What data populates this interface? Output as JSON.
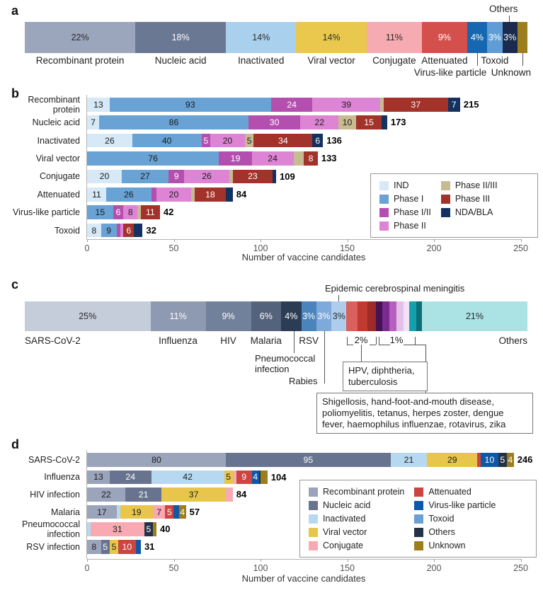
{
  "chart_data": [
    {
      "id": "a",
      "type": "bar",
      "stacked": true,
      "orientation": "horizontal",
      "letter": "a",
      "others_label": "Others",
      "unit": "percent of vaccine candidates by platform",
      "segments": [
        {
          "label": "Recombinant protein",
          "pct": "22%",
          "value": 22,
          "color": "#9ba5bc",
          "tc": "dark",
          "lp": "b1"
        },
        {
          "label": "Nucleic acid",
          "pct": "18%",
          "value": 18,
          "color": "#6b7894",
          "tc": "light",
          "lp": "b1"
        },
        {
          "label": "Inactivated",
          "pct": "14%",
          "value": 14,
          "color": "#a9d1ed",
          "tc": "dark",
          "lp": "b1"
        },
        {
          "label": "Viral vector",
          "pct": "14%",
          "value": 14,
          "color": "#e9c84d",
          "tc": "dark",
          "lp": "b1"
        },
        {
          "label": "Conjugate",
          "pct": "11%",
          "value": 11,
          "color": "#f6aab1",
          "tc": "dark",
          "lp": "b1"
        },
        {
          "label": "Attenuated",
          "pct": "9%",
          "value": 9,
          "color": "#d4504c",
          "tc": "light",
          "lp": "b1"
        },
        {
          "label": "Virus-like particle",
          "pct": "4%",
          "value": 4,
          "color": "#1767b0",
          "tc": "light",
          "lp": "b2"
        },
        {
          "label": "Toxoid",
          "pct": "3%",
          "value": 3,
          "color": "#609cd6",
          "tc": "light",
          "lp": "b1"
        },
        {
          "label": "Others",
          "pct": "3%",
          "value": 3,
          "color": "#1b2b4d",
          "tc": "light",
          "lp": "top"
        },
        {
          "label": "Unknown",
          "pct": "",
          "value": 2,
          "color": "#9d7e1e",
          "tc": "light",
          "lp": "b2"
        }
      ]
    },
    {
      "id": "b",
      "type": "bar",
      "stacked": true,
      "orientation": "horizontal",
      "letter": "b",
      "xlabel": "Number of vaccine candidates",
      "ticks": [
        0,
        50,
        100,
        150,
        200,
        250
      ],
      "xmax": 250,
      "legend_position": "right",
      "legend_cols": [
        [
          {
            "label": "IND",
            "color": "#d7e9f7",
            "text": "dark"
          },
          {
            "label": "Phase I",
            "color": "#69a2d5",
            "text": "dark"
          },
          {
            "label": "Phase I/II",
            "color": "#b44fb0",
            "text": "light"
          },
          {
            "label": "Phase II",
            "color": "#de84d5",
            "text": "dark"
          }
        ],
        [
          {
            "label": "Phase II/III",
            "color": "#c8bb92",
            "text": "dark"
          },
          {
            "label": "Phase III",
            "color": "#a3322a",
            "text": "light"
          },
          {
            "label": "NDA/BLA",
            "color": "#14325f",
            "text": "light"
          }
        ]
      ],
      "rows": [
        {
          "label": "Recombinant\nprotein",
          "total": 215,
          "segments": [
            {
              "v": 13,
              "k": "IND"
            },
            {
              "v": 93,
              "k": "Phase I"
            },
            {
              "v": 24,
              "k": "Phase I/II"
            },
            {
              "v": 39,
              "k": "Phase II"
            },
            {
              "v": 2,
              "k": "Phase II/III",
              "n": false
            },
            {
              "v": 37,
              "k": "Phase III"
            },
            {
              "v": 7,
              "k": "NDA/BLA"
            }
          ]
        },
        {
          "label": "Nucleic acid",
          "total": 173,
          "segments": [
            {
              "v": 7,
              "k": "IND"
            },
            {
              "v": 86,
              "k": "Phase I"
            },
            {
              "v": 30,
              "k": "Phase I/II"
            },
            {
              "v": 22,
              "k": "Phase II"
            },
            {
              "v": 10,
              "k": "Phase II/III"
            },
            {
              "v": 15,
              "k": "Phase III"
            },
            {
              "v": 3,
              "k": "NDA/BLA",
              "n": false
            }
          ]
        },
        {
          "label": "Inactivated",
          "total": 136,
          "segments": [
            {
              "v": 26,
              "k": "IND"
            },
            {
              "v": 40,
              "k": "Phase I"
            },
            {
              "v": 5,
              "k": "Phase I/II"
            },
            {
              "v": 20,
              "k": "Phase II"
            },
            {
              "v": 5,
              "k": "Phase II/III"
            },
            {
              "v": 34,
              "k": "Phase III"
            },
            {
              "v": 6,
              "k": "NDA/BLA"
            }
          ]
        },
        {
          "label": "Viral vector",
          "total": 133,
          "segments": [
            {
              "v": 76,
              "k": "Phase I"
            },
            {
              "v": 19,
              "k": "Phase I/II"
            },
            {
              "v": 24,
              "k": "Phase II"
            },
            {
              "v": 6,
              "k": "Phase II/III",
              "n": false
            },
            {
              "v": 8,
              "k": "Phase III"
            }
          ]
        },
        {
          "label": "Conjugate",
          "total": 109,
          "segments": [
            {
              "v": 20,
              "k": "IND"
            },
            {
              "v": 27,
              "k": "Phase I"
            },
            {
              "v": 9,
              "k": "Phase I/II"
            },
            {
              "v": 26,
              "k": "Phase II"
            },
            {
              "v": 2,
              "k": "Phase II/III",
              "n": false
            },
            {
              "v": 23,
              "k": "Phase III"
            },
            {
              "v": 2,
              "k": "NDA/BLA",
              "n": false
            }
          ]
        },
        {
          "label": "Attenuated",
          "total": 84,
          "segments": [
            {
              "v": 11,
              "k": "IND"
            },
            {
              "v": 26,
              "k": "Phase I"
            },
            {
              "v": 3,
              "k": "Phase I/II",
              "n": false
            },
            {
              "v": 20,
              "k": "Phase II"
            },
            {
              "v": 2,
              "k": "Phase II/III",
              "n": false
            },
            {
              "v": 18,
              "k": "Phase III"
            },
            {
              "v": 4,
              "k": "NDA/BLA",
              "n": false
            }
          ]
        },
        {
          "label": "Virus-like particle",
          "total": 42,
          "segments": [
            {
              "v": 15,
              "k": "Phase I"
            },
            {
              "v": 6,
              "k": "Phase I/II"
            },
            {
              "v": 8,
              "k": "Phase II"
            },
            {
              "v": 2,
              "k": "Phase II/III",
              "n": false
            },
            {
              "v": 11,
              "k": "Phase III"
            }
          ]
        },
        {
          "label": "Toxoid",
          "total": 32,
          "segments": [
            {
              "v": 8,
              "k": "IND"
            },
            {
              "v": 9,
              "k": "Phase I"
            },
            {
              "v": 2,
              "k": "Phase I/II",
              "n": false
            },
            {
              "v": 2,
              "k": "Phase II",
              "n": false
            },
            {
              "v": 6,
              "k": "Phase III"
            },
            {
              "v": 5,
              "k": "NDA/BLA",
              "n": false
            }
          ]
        }
      ]
    },
    {
      "id": "c",
      "type": "bar",
      "stacked": true,
      "orientation": "horizontal",
      "letter": "c",
      "unit": "percent of vaccine candidates by disease",
      "callouts": {
        "epidemic": "Epidemic cerebrospinal meningitis",
        "pneumococcal": "Pneumococcal\ninfection",
        "rabies": "Rabies",
        "pct2": "2%",
        "pct1": "1%",
        "box1": "HPV, diphtheria, tuberculosis",
        "box2": "Shigellosis, hand-foot-and-mouth disease, poliomyelitis, tetanus, herpes zoster, dengue fever, haemophilus influenzae, rotavirus, zika"
      },
      "segments": [
        {
          "label": "SARS-CoV-2",
          "pct": "25%",
          "value": 25,
          "color": "#c5cdda",
          "tc": "dark",
          "lp": "left"
        },
        {
          "label": "Influenza",
          "pct": "11%",
          "value": 11,
          "color": "#8e9ab1",
          "tc": "light",
          "lp": "c"
        },
        {
          "label": "HIV",
          "pct": "9%",
          "value": 9,
          "color": "#71809b",
          "tc": "light",
          "lp": "c"
        },
        {
          "label": "Malaria",
          "pct": "6%",
          "value": 6,
          "color": "#54627b",
          "tc": "light",
          "lp": "c"
        },
        {
          "label": "Pneumococcal infection",
          "pct": "4%",
          "value": 4,
          "color": "#2d3c55",
          "tc": "light",
          "lp": ""
        },
        {
          "label": "RSV",
          "pct": "3%",
          "value": 3,
          "color": "#4a84bd",
          "tc": "light",
          "lp": "c"
        },
        {
          "label": "Rabies",
          "pct": "3%",
          "value": 3,
          "color": "#7fa9da",
          "tc": "light",
          "lp": ""
        },
        {
          "label": "Epidemic cerebrospinal meningitis",
          "pct": "3%",
          "value": 3,
          "color": "#aecdec",
          "tc": "dark",
          "lp": ""
        },
        {
          "label": "",
          "pct": "",
          "value": 2.2,
          "color": "#d9615c",
          "tc": "light",
          "lp": ""
        },
        {
          "label": "",
          "pct": "",
          "value": 2.0,
          "color": "#c03a31",
          "tc": "light",
          "lp": ""
        },
        {
          "label": "",
          "pct": "",
          "value": 1.6,
          "color": "#9e2b28",
          "tc": "light",
          "lp": ""
        },
        {
          "label": "",
          "pct": "",
          "value": 1.3,
          "color": "#451253",
          "tc": "light",
          "lp": ""
        },
        {
          "label": "",
          "pct": "",
          "value": 1.5,
          "color": "#7b2b8d",
          "tc": "light",
          "lp": ""
        },
        {
          "label": "",
          "pct": "",
          "value": 1.4,
          "color": "#b75ec0",
          "tc": "light",
          "lp": ""
        },
        {
          "label": "",
          "pct": "",
          "value": 1.4,
          "color": "#e3c0ea",
          "tc": "dark",
          "lp": ""
        },
        {
          "label": "",
          "pct": "",
          "value": 1.1,
          "color": "#f2e2f6",
          "tc": "dark",
          "lp": ""
        },
        {
          "label": "",
          "pct": "",
          "value": 1.4,
          "color": "#12a0ac",
          "tc": "light",
          "lp": ""
        },
        {
          "label": "",
          "pct": "",
          "value": 1.1,
          "color": "#0b6f7a",
          "tc": "light",
          "lp": ""
        },
        {
          "label": "Others",
          "pct": "21%",
          "value": 21,
          "color": "#abe2e4",
          "tc": "dark",
          "lp": "right"
        }
      ]
    },
    {
      "id": "d",
      "type": "bar",
      "stacked": true,
      "orientation": "horizontal",
      "letter": "d",
      "xlabel": "Number of vaccine candidates",
      "ticks": [
        0,
        50,
        100,
        150,
        200,
        250
      ],
      "xmax": 250,
      "legend_position": "right",
      "legend_cols": [
        [
          {
            "label": "Recombinant protein",
            "color": "#9aa4bb",
            "text": "dark"
          },
          {
            "label": "Nucleic acid",
            "color": "#68748f",
            "text": "light"
          },
          {
            "label": "Inactivated",
            "color": "#b7d8f1",
            "text": "dark"
          },
          {
            "label": "Viral vector",
            "color": "#e8c64b",
            "text": "dark"
          },
          {
            "label": "Conjugate",
            "color": "#f8a9b2",
            "text": "dark"
          }
        ],
        [
          {
            "label": "Attenuated",
            "color": "#cc4540",
            "text": "light"
          },
          {
            "label": "Virus-like particle",
            "color": "#0e59a6",
            "text": "light"
          },
          {
            "label": "Toxoid",
            "color": "#6ba0d5",
            "text": "dark"
          },
          {
            "label": "Others",
            "color": "#233247",
            "text": "light"
          },
          {
            "label": "Unknown",
            "color": "#9d7d1d",
            "text": "light"
          }
        ]
      ],
      "rows": [
        {
          "label": "SARS-CoV-2",
          "total": 246,
          "segments": [
            {
              "v": 80,
              "k": "Recombinant protein"
            },
            {
              "v": 95,
              "k": "Nucleic acid"
            },
            {
              "v": 21,
              "k": "Inactivated"
            },
            {
              "v": 29,
              "k": "Viral vector"
            },
            {
              "v": 2,
              "k": "Attenuated",
              "n": false
            },
            {
              "v": 10,
              "k": "Virus-like particle"
            },
            {
              "v": 5,
              "k": "Others"
            },
            {
              "v": 4,
              "k": "Unknown"
            }
          ]
        },
        {
          "label": "Influenza",
          "total": 104,
          "segments": [
            {
              "v": 13,
              "k": "Recombinant protein"
            },
            {
              "v": 24,
              "k": "Nucleic acid"
            },
            {
              "v": 42,
              "k": "Inactivated"
            },
            {
              "v": 5,
              "k": "Viral vector"
            },
            {
              "v": 2,
              "k": "Conjugate",
              "n": false
            },
            {
              "v": 9,
              "k": "Attenuated"
            },
            {
              "v": 4,
              "k": "Virus-like particle"
            },
            {
              "v": 1,
              "k": "Others",
              "n": false
            },
            {
              "v": 4,
              "k": "Unknown",
              "n": false
            }
          ]
        },
        {
          "label": "HIV infection",
          "total": 84,
          "segments": [
            {
              "v": 22,
              "k": "Recombinant protein"
            },
            {
              "v": 21,
              "k": "Nucleic acid"
            },
            {
              "v": 37,
              "k": "Viral vector"
            },
            {
              "v": 4,
              "k": "Conjugate",
              "n": false
            }
          ]
        },
        {
          "label": "Malaria",
          "total": 57,
          "segments": [
            {
              "v": 17,
              "k": "Recombinant protein"
            },
            {
              "v": 2,
              "k": "Inactivated",
              "n": false
            },
            {
              "v": 19,
              "k": "Viral vector"
            },
            {
              "v": 7,
              "k": "Conjugate"
            },
            {
              "v": 5,
              "k": "Attenuated"
            },
            {
              "v": 3,
              "k": "Virus-like particle",
              "n": false
            },
            {
              "v": 4,
              "k": "Unknown"
            }
          ]
        },
        {
          "label": "Pneumococcal\ninfection",
          "total": 40,
          "segments": [
            {
              "v": 2,
              "k": "Inactivated",
              "n": false
            },
            {
              "v": 31,
              "k": "Conjugate"
            },
            {
              "v": 5,
              "k": "Others"
            },
            {
              "v": 2,
              "k": "Unknown",
              "n": false
            }
          ]
        },
        {
          "label": "RSV infection",
          "total": 31,
          "segments": [
            {
              "v": 8,
              "k": "Recombinant protein"
            },
            {
              "v": 5,
              "k": "Nucleic acid"
            },
            {
              "v": 5,
              "k": "Viral vector"
            },
            {
              "v": 10,
              "k": "Attenuated"
            },
            {
              "v": 3,
              "k": "Virus-like particle",
              "n": false
            }
          ]
        }
      ]
    }
  ]
}
